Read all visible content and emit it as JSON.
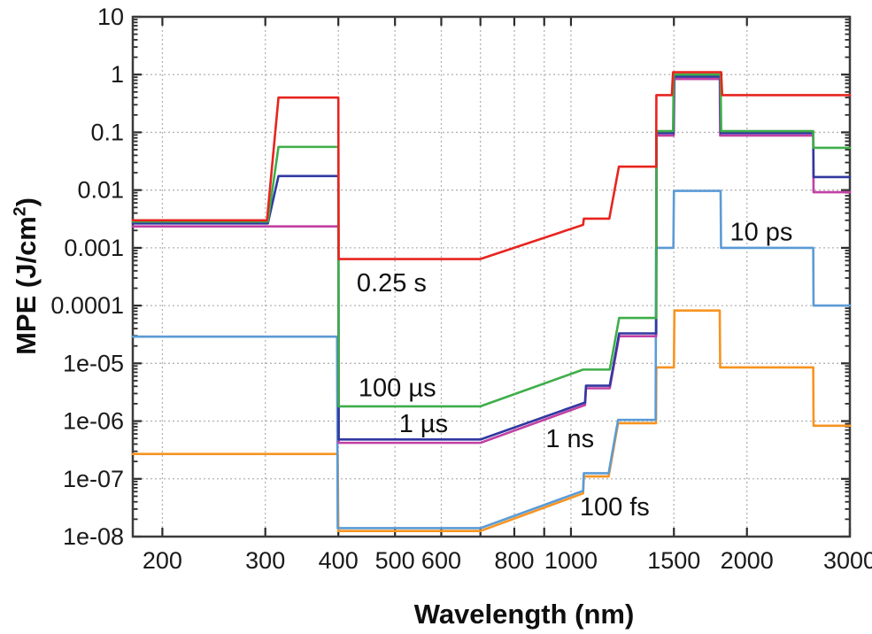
{
  "chart_data": {
    "type": "line",
    "title": "",
    "xlabel": "Wavelength (nm)",
    "ylabel": "MPE (J/cm2)",
    "ylabel_parts": {
      "prefix": "MPE (J/cm",
      "sup": "2",
      "suffix": ")"
    },
    "x_scale": "log",
    "y_scale": "log",
    "xlim": [
      178,
      3000
    ],
    "ylim": [
      1e-08,
      10
    ],
    "grid": true,
    "grid_style": "dotted",
    "legend_position": "inline-annotations",
    "x_ticks": [
      {
        "v": 200,
        "label": "200"
      },
      {
        "v": 300,
        "label": "300"
      },
      {
        "v": 400,
        "label": "400"
      },
      {
        "v": 500,
        "label": "500"
      },
      {
        "v": 600,
        "label": "600"
      },
      {
        "v": 700,
        "label": ""
      },
      {
        "v": 800,
        "label": "800"
      },
      {
        "v": 900,
        "label": ""
      },
      {
        "v": 1000,
        "label": "1000"
      },
      {
        "v": 1500,
        "label": "1500"
      },
      {
        "v": 2000,
        "label": "2000"
      },
      {
        "v": 3000,
        "label": "3000"
      }
    ],
    "y_ticks": [
      {
        "v": 10,
        "label": "10"
      },
      {
        "v": 1,
        "label": "1"
      },
      {
        "v": 0.1,
        "label": "0.1"
      },
      {
        "v": 0.01,
        "label": "0.01"
      },
      {
        "v": 0.001,
        "label": "0.001"
      },
      {
        "v": 0.0001,
        "label": "0.0001"
      },
      {
        "v": 1e-05,
        "label": "1e-05"
      },
      {
        "v": 1e-06,
        "label": "1e-06"
      },
      {
        "v": 1e-07,
        "label": "1e-07"
      },
      {
        "v": 1e-08,
        "label": "1e-08"
      }
    ],
    "series": [
      {
        "name": "100 fs",
        "color": "#f79420",
        "points": [
          [
            178,
            2.7e-07
          ],
          [
            399,
            2.7e-07
          ],
          [
            400,
            1.25e-08
          ],
          [
            700,
            1.25e-08
          ],
          [
            1049,
            5.6e-08
          ],
          [
            1052,
            1.1e-07
          ],
          [
            1160,
            1.1e-07
          ],
          [
            1204,
            9.2e-07
          ],
          [
            1398,
            9.2e-07
          ],
          [
            1400,
            8.5e-06
          ],
          [
            1500,
            8.5e-06
          ],
          [
            1503,
            8.2e-05
          ],
          [
            1797,
            8.2e-05
          ],
          [
            1800,
            8.5e-06
          ],
          [
            2597,
            8.5e-06
          ],
          [
            2600,
            8.3e-07
          ],
          [
            3000,
            8.3e-07
          ]
        ]
      },
      {
        "name": "10 ps",
        "color": "#5b9bd5",
        "points": [
          [
            178,
            2.9e-05
          ],
          [
            398,
            2.9e-05
          ],
          [
            399,
            1.4e-08
          ],
          [
            700,
            1.4e-08
          ],
          [
            1049,
            6.2e-08
          ],
          [
            1052,
            1.25e-07
          ],
          [
            1160,
            1.25e-07
          ],
          [
            1204,
            1.05e-06
          ],
          [
            1396,
            1.05e-06
          ],
          [
            1398,
            0.001
          ],
          [
            1497,
            0.001
          ],
          [
            1500,
            0.0097
          ],
          [
            1803,
            0.0097
          ],
          [
            1806,
            0.001
          ],
          [
            2597,
            0.001
          ],
          [
            2600,
            0.0001
          ],
          [
            3000,
            0.0001
          ]
        ]
      },
      {
        "name": "1 ns",
        "color": "#c240a4",
        "points": [
          [
            178,
            0.00235
          ],
          [
            400,
            0.00235
          ],
          [
            400.5,
            4.2e-07
          ],
          [
            700,
            4.2e-07
          ],
          [
            1057,
            1.9e-06
          ],
          [
            1061,
            3.7e-06
          ],
          [
            1165,
            3.7e-06
          ],
          [
            1209,
            2.95e-05
          ],
          [
            1399,
            2.95e-05
          ],
          [
            1401,
            0.088
          ],
          [
            1499,
            0.088
          ],
          [
            1503,
            0.84
          ],
          [
            1797,
            0.84
          ],
          [
            1800,
            0.088
          ],
          [
            2597,
            0.088
          ],
          [
            2600,
            0.0092
          ],
          [
            3000,
            0.0092
          ]
        ]
      },
      {
        "name": "1 µs",
        "color": "#3038a0",
        "points": [
          [
            178,
            0.00265
          ],
          [
            303,
            0.00265
          ],
          [
            316,
            0.0175
          ],
          [
            400,
            0.0175
          ],
          [
            400.5,
            4.8e-07
          ],
          [
            700,
            4.8e-07
          ],
          [
            1057,
            2.1e-06
          ],
          [
            1061,
            4.1e-06
          ],
          [
            1165,
            4.1e-06
          ],
          [
            1209,
            3.3e-05
          ],
          [
            1399,
            3.3e-05
          ],
          [
            1400.5,
            0.097
          ],
          [
            1498,
            0.097
          ],
          [
            1501,
            0.92
          ],
          [
            1800,
            0.92
          ],
          [
            1803,
            0.097
          ],
          [
            2597,
            0.097
          ],
          [
            2600,
            0.0168
          ],
          [
            3000,
            0.0168
          ]
        ]
      },
      {
        "name": "100 µs",
        "color": "#3fae49",
        "points": [
          [
            178,
            0.00285
          ],
          [
            303,
            0.00285
          ],
          [
            316,
            0.056
          ],
          [
            400,
            0.056
          ],
          [
            400.5,
            1.8e-06
          ],
          [
            700,
            1.8e-06
          ],
          [
            1049,
            7.8e-06
          ],
          [
            1165,
            7.8e-06
          ],
          [
            1209,
            6.1e-05
          ],
          [
            1399,
            6.1e-05
          ],
          [
            1400.5,
            0.105
          ],
          [
            1495,
            0.105
          ],
          [
            1499,
            1.0
          ],
          [
            1803,
            1.0
          ],
          [
            1807,
            0.105
          ],
          [
            2597,
            0.105
          ],
          [
            2600,
            0.054
          ],
          [
            3000,
            0.054
          ]
        ]
      },
      {
        "name": "0.25 s",
        "color": "#e8241f",
        "points": [
          [
            178,
            0.003
          ],
          [
            302,
            0.003
          ],
          [
            316,
            0.4
          ],
          [
            400,
            0.4
          ],
          [
            400.5,
            0.00064
          ],
          [
            700,
            0.00064
          ],
          [
            1049,
            0.0025
          ],
          [
            1052,
            0.0032
          ],
          [
            1163,
            0.0032
          ],
          [
            1208,
            0.0255
          ],
          [
            1399,
            0.0255
          ],
          [
            1400,
            0.44
          ],
          [
            1488,
            0.44
          ],
          [
            1495,
            1.1
          ],
          [
            1807,
            1.1
          ],
          [
            1814,
            0.44
          ],
          [
            3000,
            0.44
          ]
        ]
      }
    ],
    "annotations": [
      {
        "text": "0.25 s",
        "x": 430,
        "y": 0.00025
      },
      {
        "text": "100 µs",
        "x": 433,
        "y": 3.8e-06
      },
      {
        "text": "1 µs",
        "x": 508,
        "y": 9.2e-07
      },
      {
        "text": "1 ns",
        "x": 905,
        "y": 5e-07
      },
      {
        "text": "10 ps",
        "x": 1870,
        "y": 0.0019
      },
      {
        "text": "100 fs",
        "x": 1035,
        "y": 3.3e-08
      }
    ],
    "colors": {
      "spine": "#3b3b3b",
      "tick": "#2b2b2b",
      "grid": "#b3b3b3",
      "tick_label": "#1a1a1a",
      "annotation": "#111111"
    }
  }
}
